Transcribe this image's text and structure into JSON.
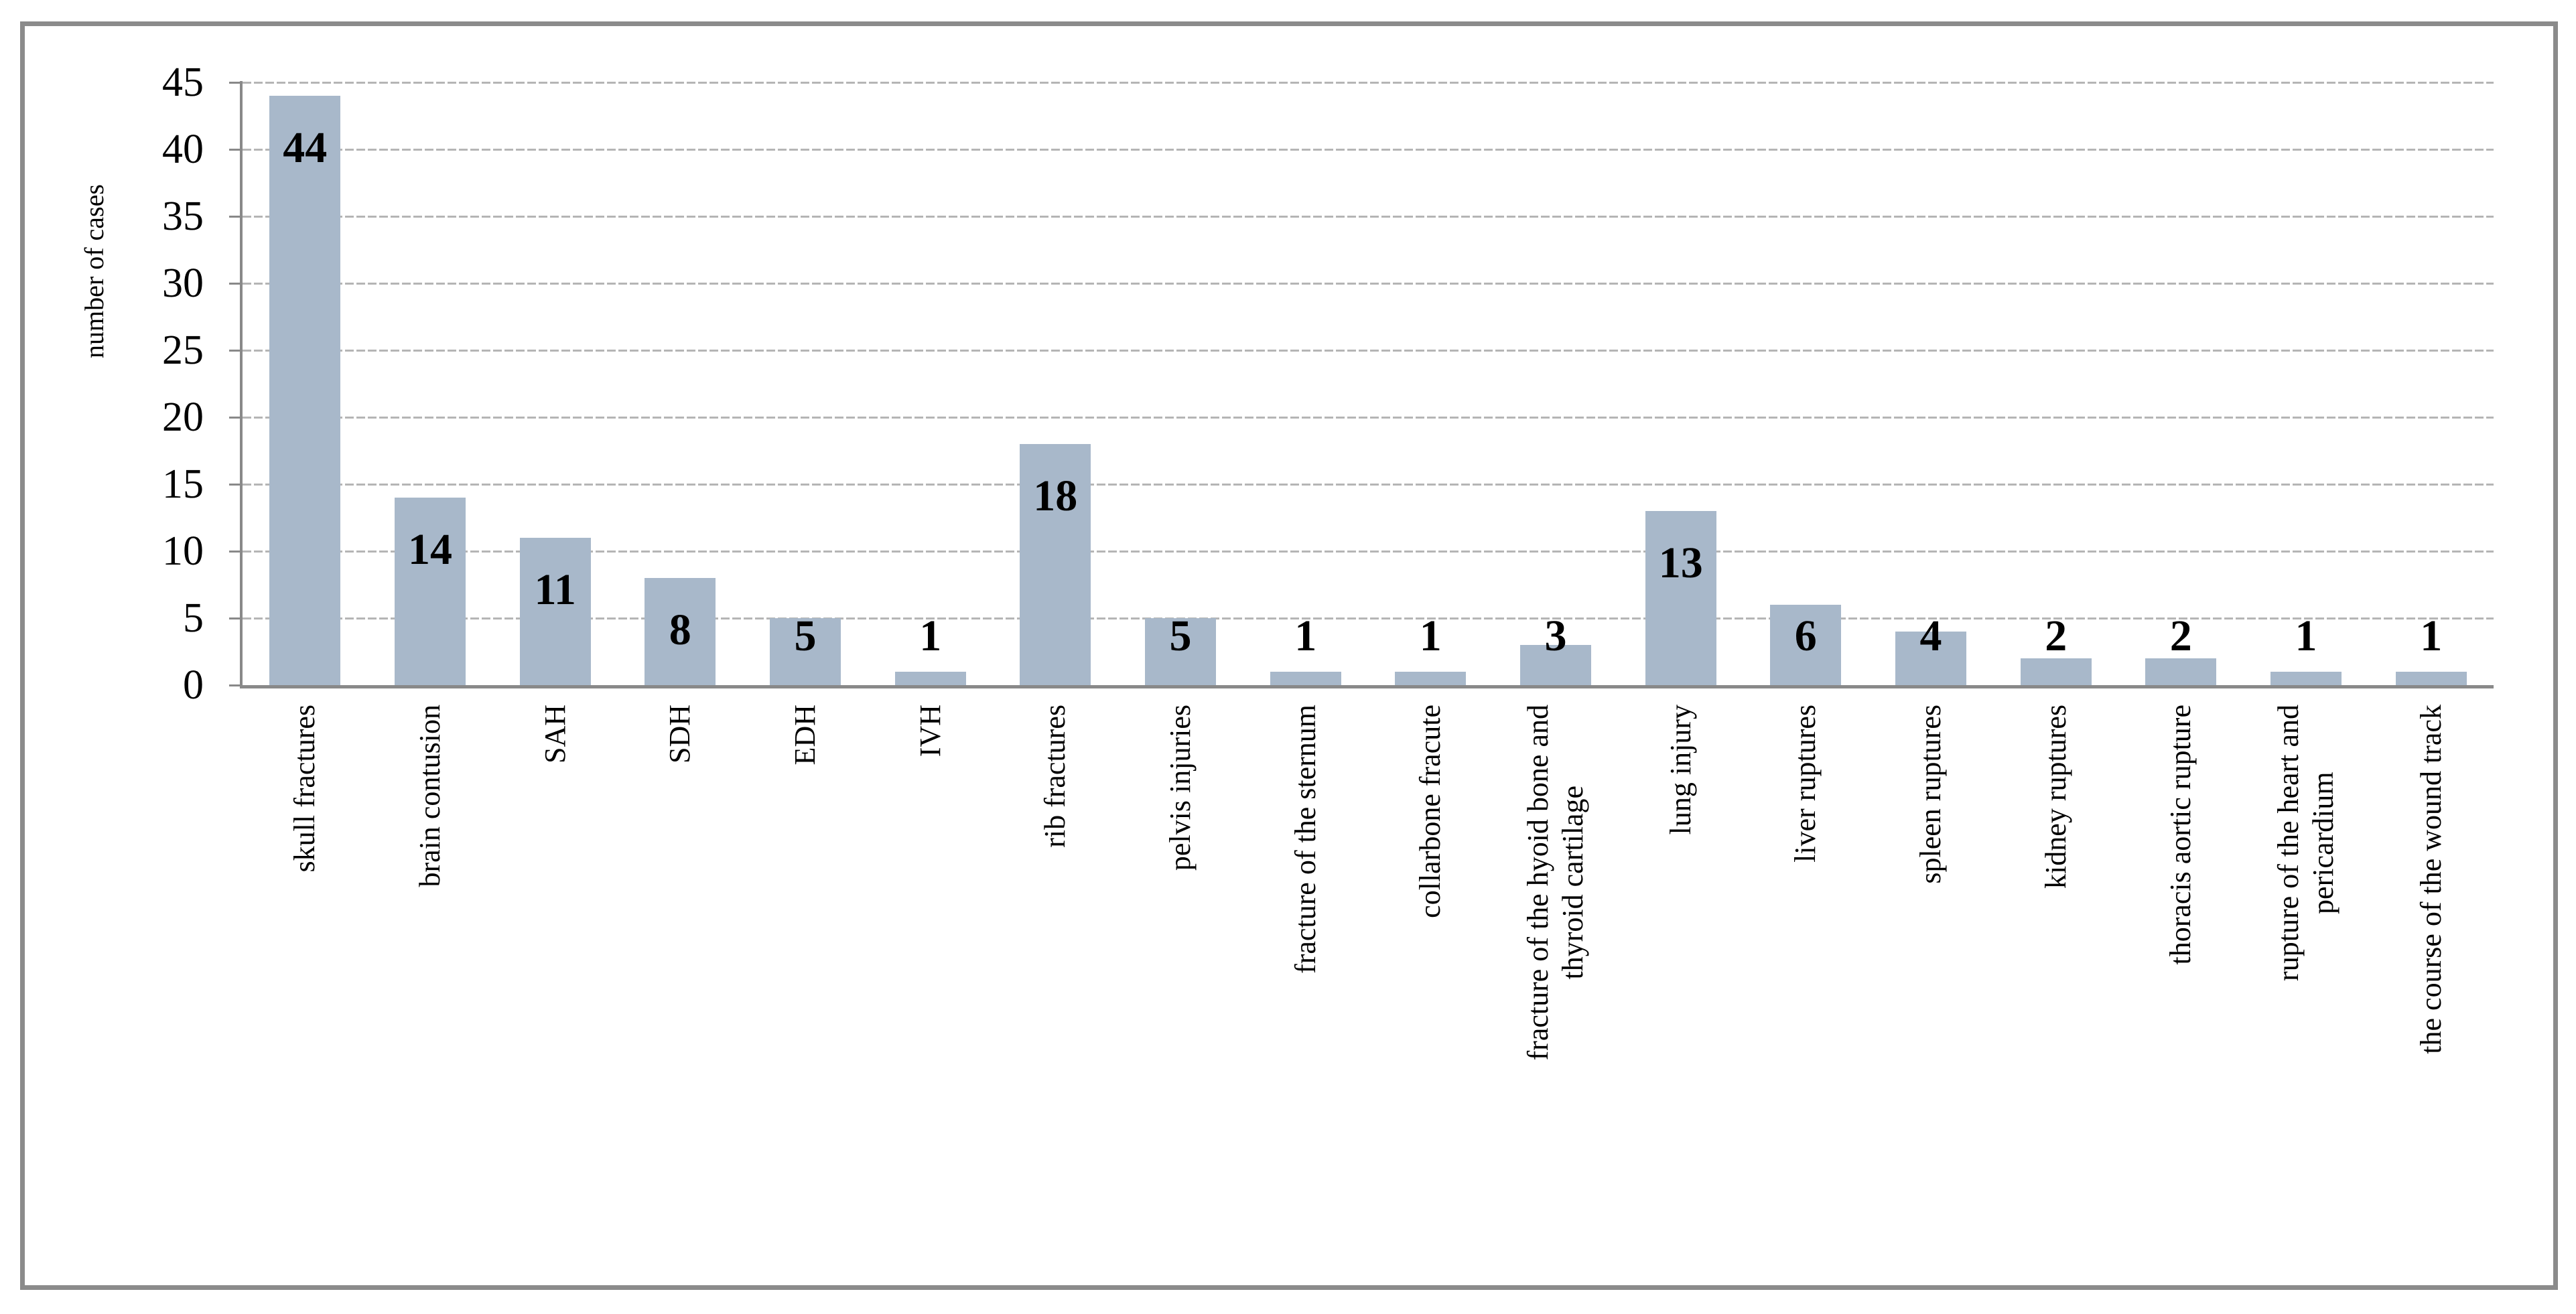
{
  "chart_data": {
    "type": "bar",
    "title": "",
    "ylabel": "number of cases",
    "xlabel": "",
    "categories": [
      "skull fractures",
      "brain contusion",
      "SAH",
      "SDH",
      "EDH",
      "IVH",
      "rib fractures",
      "pelvis injuries",
      "fracture of the sternum",
      "collarbone fracute",
      "fracture of the hyoid bone and\nthyroid cartilage",
      "lung injury",
      "liver ruptures",
      "spleen ruptures",
      "kidney ruptures",
      "thoracis aortic rupture",
      "rupture of the heart and\npericardium",
      "the course of the wound track"
    ],
    "values": [
      44,
      14,
      11,
      8,
      5,
      1,
      18,
      5,
      1,
      1,
      3,
      13,
      6,
      4,
      2,
      2,
      1,
      1
    ],
    "ylim": [
      0,
      45
    ],
    "ytick_step": 5,
    "yticks": [
      0,
      5,
      10,
      15,
      20,
      25,
      30,
      35,
      40,
      45
    ],
    "grid": "horizontal dashed gridlines on",
    "legend": "none",
    "data_labels": "bold values at inside-end of bars; shown just above short bars",
    "colors": {
      "bar_fill": "#a8b8ca",
      "gridline": "#b5b5b5",
      "axis_line": "#898989",
      "chart_border": "#8b8b8b",
      "label_text": "#000000",
      "background": "#ffffff"
    }
  }
}
